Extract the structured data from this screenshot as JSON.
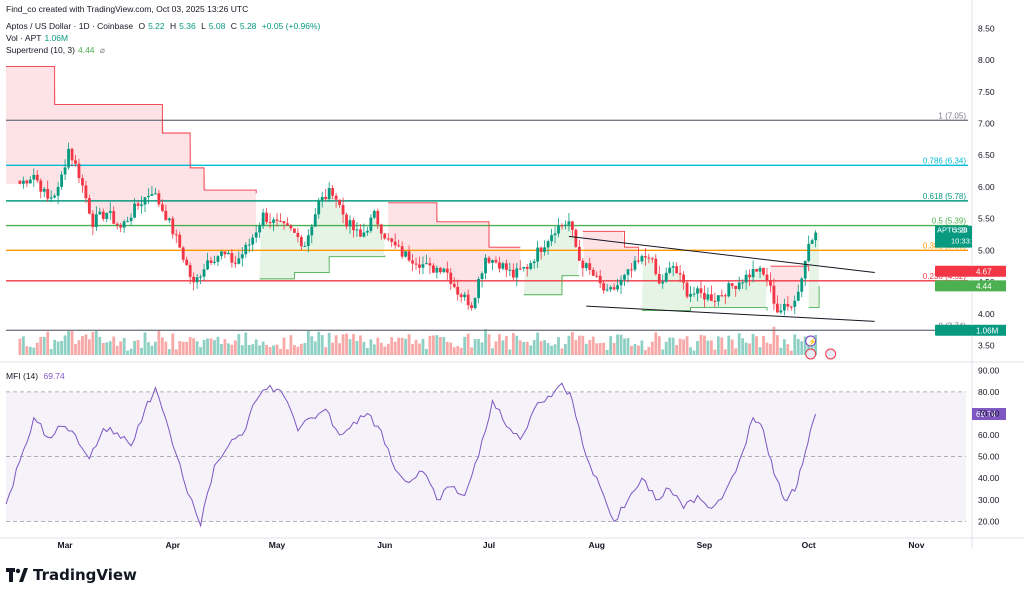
{
  "header": {
    "creator": "Find_co created with TradingView.com, Oct 03, 2025 13:26 UTC",
    "symbol": "Aptos / US Dollar · 1D · Coinbase",
    "o_label": "O",
    "o_value": "5.22",
    "h_label": "H",
    "h_value": "5.36",
    "l_label": "L",
    "l_value": "5.08",
    "c_label": "C",
    "c_value": "5.28",
    "change": "+0.05 (+0.96%)",
    "vol_label": "Vol · APT",
    "vol_value": "1.06M",
    "st_label": "Supertrend (10, 3)",
    "st_value": "4.44",
    "st_icon": "eye-off-icon"
  },
  "branding": {
    "name": "TradingView",
    "icon": "tradingview-logo-icon"
  },
  "colors": {
    "up": "#089981",
    "down": "#f23645",
    "up_vol": "#8fd0c5",
    "down_vol": "#f7a9a7",
    "fib_0": "#787b86",
    "fib_236": "#f23645",
    "fib_382": "#ff9800",
    "fib_5": "#4caf50",
    "fib_618": "#089981",
    "fib_786": "#00bcd4",
    "fib_1": "#787b86",
    "mfi": "#7e57c2",
    "price_tag": "#089981"
  },
  "chart_data": [
    {
      "type": "candlestick",
      "title": "Aptos / US Dollar · 1D · Coinbase",
      "x_axis": {
        "ticks": [
          "Mar",
          "Apr",
          "May",
          "Jun",
          "Jul",
          "Aug",
          "Sep",
          "Oct",
          "Nov"
        ]
      },
      "y_axis": {
        "ticks": [
          "8.50",
          "8.00",
          "7.50",
          "7.00",
          "6.50",
          "6.00",
          "5.50",
          "5.00",
          "4.50",
          "4.00",
          "3.50"
        ],
        "range": [
          3.35,
          8.6
        ]
      },
      "close_series": [
        {
          "x": "2025-02-16",
          "y": 6.05
        },
        {
          "x": "2025-02-20",
          "y": 6.2
        },
        {
          "x": "2025-02-24",
          "y": 5.8
        },
        {
          "x": "2025-02-27",
          "y": 5.95
        },
        {
          "x": "2025-03-02",
          "y": 6.6
        },
        {
          "x": "2025-03-05",
          "y": 6.2
        },
        {
          "x": "2025-03-09",
          "y": 5.45
        },
        {
          "x": "2025-03-13",
          "y": 5.6
        },
        {
          "x": "2025-03-17",
          "y": 5.35
        },
        {
          "x": "2025-03-21",
          "y": 5.65
        },
        {
          "x": "2025-03-26",
          "y": 5.95
        },
        {
          "x": "2025-03-30",
          "y": 5.55
        },
        {
          "x": "2025-04-03",
          "y": 5.05
        },
        {
          "x": "2025-04-07",
          "y": 4.45
        },
        {
          "x": "2025-04-11",
          "y": 4.85
        },
        {
          "x": "2025-04-15",
          "y": 4.95
        },
        {
          "x": "2025-04-19",
          "y": 4.8
        },
        {
          "x": "2025-04-23",
          "y": 5.1
        },
        {
          "x": "2025-04-27",
          "y": 5.55
        },
        {
          "x": "2025-05-01",
          "y": 5.4
        },
        {
          "x": "2025-05-05",
          "y": 5.3
        },
        {
          "x": "2025-05-09",
          "y": 5.1
        },
        {
          "x": "2025-05-13",
          "y": 5.75
        },
        {
          "x": "2025-05-17",
          "y": 5.95
        },
        {
          "x": "2025-05-21",
          "y": 5.45
        },
        {
          "x": "2025-05-25",
          "y": 5.2
        },
        {
          "x": "2025-05-29",
          "y": 5.55
        },
        {
          "x": "2025-06-02",
          "y": 5.15
        },
        {
          "x": "2025-06-06",
          "y": 4.95
        },
        {
          "x": "2025-06-10",
          "y": 4.85
        },
        {
          "x": "2025-06-14",
          "y": 4.7
        },
        {
          "x": "2025-06-18",
          "y": 4.75
        },
        {
          "x": "2025-06-22",
          "y": 4.35
        },
        {
          "x": "2025-06-26",
          "y": 4.15
        },
        {
          "x": "2025-06-30",
          "y": 4.9
        },
        {
          "x": "2025-07-04",
          "y": 4.8
        },
        {
          "x": "2025-07-08",
          "y": 4.6
        },
        {
          "x": "2025-07-12",
          "y": 4.75
        },
        {
          "x": "2025-07-16",
          "y": 5.05
        },
        {
          "x": "2025-07-20",
          "y": 5.35
        },
        {
          "x": "2025-07-24",
          "y": 5.45
        },
        {
          "x": "2025-07-27",
          "y": 4.85
        },
        {
          "x": "2025-07-31",
          "y": 4.6
        },
        {
          "x": "2025-08-04",
          "y": 4.3
        },
        {
          "x": "2025-08-08",
          "y": 4.5
        },
        {
          "x": "2025-08-12",
          "y": 4.75
        },
        {
          "x": "2025-08-16",
          "y": 4.95
        },
        {
          "x": "2025-08-19",
          "y": 4.45
        },
        {
          "x": "2025-08-23",
          "y": 4.75
        },
        {
          "x": "2025-08-27",
          "y": 4.35
        },
        {
          "x": "2025-08-31",
          "y": 4.3
        },
        {
          "x": "2025-09-04",
          "y": 4.25
        },
        {
          "x": "2025-09-08",
          "y": 4.4
        },
        {
          "x": "2025-09-12",
          "y": 4.55
        },
        {
          "x": "2025-09-16",
          "y": 4.7
        },
        {
          "x": "2025-09-19",
          "y": 4.55
        },
        {
          "x": "2025-09-22",
          "y": 4.05
        },
        {
          "x": "2025-09-25",
          "y": 4.1
        },
        {
          "x": "2025-09-28",
          "y": 4.35
        },
        {
          "x": "2025-10-01",
          "y": 5.1
        },
        {
          "x": "2025-10-03",
          "y": 5.28
        }
      ],
      "fib_levels": [
        {
          "label": "1 (7.05)",
          "value": 7.05,
          "color": "#787b86"
        },
        {
          "label": "0.786 (6.34)",
          "value": 6.34,
          "color": "#00bcd4"
        },
        {
          "label": "0.618 (5.78)",
          "value": 5.78,
          "color": "#089981"
        },
        {
          "label": "0.5 (5.39)",
          "value": 5.39,
          "color": "#4caf50"
        },
        {
          "label": "0.382 (5.00)",
          "value": 5.0,
          "color": "#ff9800"
        },
        {
          "label": "0.236 (4.52)",
          "value": 4.52,
          "color": "#f23645"
        },
        {
          "label": "0 (3.74)",
          "value": 3.74,
          "color": "#787b86"
        }
      ],
      "trendlines": [
        {
          "from": {
            "x": "2025-07-24",
            "y": 5.22
          },
          "to": {
            "x": "2025-10-20",
            "y": 4.65
          }
        },
        {
          "from": {
            "x": "2025-07-29",
            "y": 4.12
          },
          "to": {
            "x": "2025-10-20",
            "y": 3.88
          }
        }
      ],
      "supertrend": {
        "bear": [
          {
            "x": "2025-02-12",
            "y": 7.9
          },
          {
            "x": "2025-02-22",
            "y": 7.9
          },
          {
            "x": "2025-02-26",
            "y": 7.3
          },
          {
            "x": "2025-03-25",
            "y": 7.3
          },
          {
            "x": "2025-03-29",
            "y": 6.85
          },
          {
            "x": "2025-04-06",
            "y": 6.3
          },
          {
            "x": "2025-04-10",
            "y": 5.95
          },
          {
            "x": "2025-04-25",
            "y": 5.9
          }
        ],
        "bull_1": [
          {
            "x": "2025-04-26",
            "y": 4.55
          },
          {
            "x": "2025-05-06",
            "y": 4.65
          },
          {
            "x": "2025-05-16",
            "y": 4.9
          },
          {
            "x": "2025-06-01",
            "y": 4.92
          }
        ],
        "bear_2": [
          {
            "x": "2025-06-02",
            "y": 5.75
          },
          {
            "x": "2025-06-16",
            "y": 5.45
          },
          {
            "x": "2025-07-01",
            "y": 5.05
          },
          {
            "x": "2025-07-10",
            "y": 5.05
          }
        ],
        "bull_2": [
          {
            "x": "2025-07-11",
            "y": 4.3
          },
          {
            "x": "2025-07-22",
            "y": 4.6
          },
          {
            "x": "2025-07-27",
            "y": 4.6
          }
        ],
        "bear_3": [
          {
            "x": "2025-07-28",
            "y": 5.3
          },
          {
            "x": "2025-08-09",
            "y": 5.05
          },
          {
            "x": "2025-08-13",
            "y": 4.95
          }
        ],
        "bull_3": [
          {
            "x": "2025-08-14",
            "y": 4.05
          },
          {
            "x": "2025-08-28",
            "y": 4.1
          },
          {
            "x": "2025-09-12",
            "y": 4.1
          },
          {
            "x": "2025-09-19",
            "y": 4.05
          }
        ],
        "bear_4": [
          {
            "x": "2025-09-20",
            "y": 4.75
          },
          {
            "x": "2025-10-01",
            "y": 4.67
          }
        ],
        "bull_4": [
          {
            "x": "2025-10-01",
            "y": 4.1
          },
          {
            "x": "2025-10-04",
            "y": 4.44
          }
        ]
      },
      "price_tags": [
        {
          "label": "APTUSD",
          "value": "5.28",
          "sub": "10:33:32",
          "y": 5.28,
          "color": "#089981"
        },
        {
          "label": "",
          "value": "4.67",
          "sub": "",
          "y": 4.67,
          "color": "#f23645"
        },
        {
          "label": "",
          "value": "4.44",
          "sub": "",
          "y": 4.44,
          "color": "#4caf50"
        },
        {
          "label": "",
          "value": "1.06M",
          "sub": "",
          "y": 3.74,
          "color": "#089981"
        }
      ]
    },
    {
      "type": "line",
      "title": "MFI (14)",
      "value_label": "69.74",
      "y_axis": {
        "ticks": [
          "90.00",
          "80.00",
          "70.00",
          "60.00",
          "50.00",
          "40.00",
          "30.00",
          "20.00"
        ],
        "range": [
          16,
          92
        ]
      },
      "band": [
        20,
        80
      ],
      "series": [
        {
          "x": "2025-02-12",
          "y": 28
        },
        {
          "x": "2025-02-16",
          "y": 48
        },
        {
          "x": "2025-02-20",
          "y": 68
        },
        {
          "x": "2025-02-24",
          "y": 59
        },
        {
          "x": "2025-02-28",
          "y": 64
        },
        {
          "x": "2025-03-04",
          "y": 60
        },
        {
          "x": "2025-03-08",
          "y": 49
        },
        {
          "x": "2025-03-12",
          "y": 63
        },
        {
          "x": "2025-03-16",
          "y": 61
        },
        {
          "x": "2025-03-20",
          "y": 55
        },
        {
          "x": "2025-03-24",
          "y": 72
        },
        {
          "x": "2025-03-27",
          "y": 82
        },
        {
          "x": "2025-03-31",
          "y": 62
        },
        {
          "x": "2025-04-04",
          "y": 40
        },
        {
          "x": "2025-04-09",
          "y": 18
        },
        {
          "x": "2025-04-13",
          "y": 46
        },
        {
          "x": "2025-04-17",
          "y": 55
        },
        {
          "x": "2025-04-21",
          "y": 60
        },
        {
          "x": "2025-04-25",
          "y": 76
        },
        {
          "x": "2025-04-29",
          "y": 83
        },
        {
          "x": "2025-05-03",
          "y": 78
        },
        {
          "x": "2025-05-07",
          "y": 62
        },
        {
          "x": "2025-05-11",
          "y": 68
        },
        {
          "x": "2025-05-15",
          "y": 72
        },
        {
          "x": "2025-05-19",
          "y": 60
        },
        {
          "x": "2025-05-23",
          "y": 66
        },
        {
          "x": "2025-05-27",
          "y": 70
        },
        {
          "x": "2025-05-31",
          "y": 62
        },
        {
          "x": "2025-06-04",
          "y": 44
        },
        {
          "x": "2025-06-08",
          "y": 38
        },
        {
          "x": "2025-06-12",
          "y": 43
        },
        {
          "x": "2025-06-16",
          "y": 30
        },
        {
          "x": "2025-06-20",
          "y": 36
        },
        {
          "x": "2025-06-24",
          "y": 32
        },
        {
          "x": "2025-06-28",
          "y": 50
        },
        {
          "x": "2025-07-02",
          "y": 76
        },
        {
          "x": "2025-07-06",
          "y": 64
        },
        {
          "x": "2025-07-10",
          "y": 58
        },
        {
          "x": "2025-07-14",
          "y": 72
        },
        {
          "x": "2025-07-18",
          "y": 78
        },
        {
          "x": "2025-07-22",
          "y": 84
        },
        {
          "x": "2025-07-25",
          "y": 76
        },
        {
          "x": "2025-07-29",
          "y": 50
        },
        {
          "x": "2025-08-02",
          "y": 36
        },
        {
          "x": "2025-08-06",
          "y": 20
        },
        {
          "x": "2025-08-10",
          "y": 30
        },
        {
          "x": "2025-08-14",
          "y": 40
        },
        {
          "x": "2025-08-18",
          "y": 30
        },
        {
          "x": "2025-08-22",
          "y": 35
        },
        {
          "x": "2025-08-26",
          "y": 26
        },
        {
          "x": "2025-08-30",
          "y": 32
        },
        {
          "x": "2025-09-03",
          "y": 26
        },
        {
          "x": "2025-09-07",
          "y": 34
        },
        {
          "x": "2025-09-11",
          "y": 48
        },
        {
          "x": "2025-09-15",
          "y": 68
        },
        {
          "x": "2025-09-18",
          "y": 62
        },
        {
          "x": "2025-09-21",
          "y": 42
        },
        {
          "x": "2025-09-24",
          "y": 30
        },
        {
          "x": "2025-09-27",
          "y": 34
        },
        {
          "x": "2025-09-30",
          "y": 52
        },
        {
          "x": "2025-10-03",
          "y": 69.74
        }
      ]
    }
  ]
}
